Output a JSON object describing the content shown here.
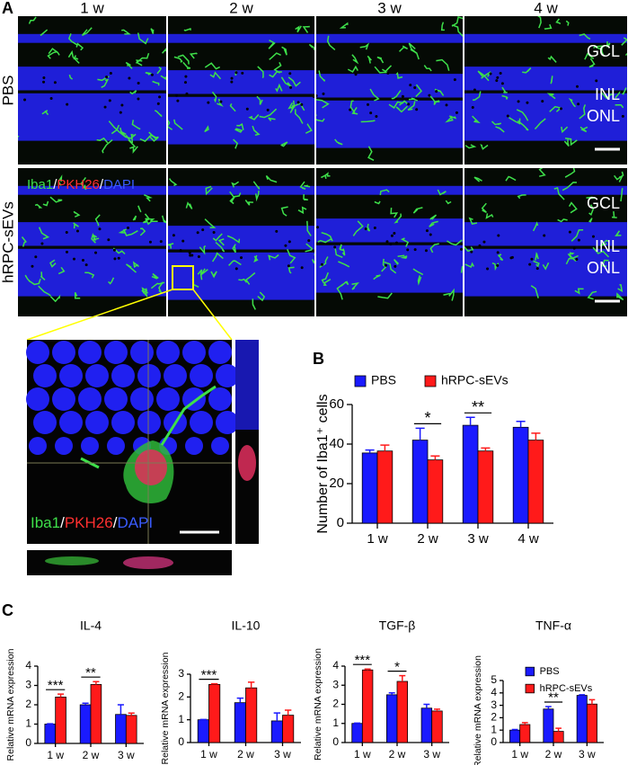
{
  "panel_a": {
    "label": "A",
    "columns": [
      "1 w",
      "2 w",
      "3 w",
      "4 w"
    ],
    "rows": [
      "PBS",
      "hRPC-sEVs"
    ],
    "layers": [
      "GCL",
      "INL",
      "ONL"
    ],
    "stain": [
      "Iba1",
      "/",
      "PKH26",
      "/",
      "DAPI"
    ]
  },
  "chart_data": [
    {
      "type": "bar",
      "panel": "B",
      "ylabel": "Number of Iba1⁺ cells",
      "categories": [
        "1 w",
        "2 w",
        "3 w",
        "4 w"
      ],
      "ylim": [
        0,
        60
      ],
      "yticks": [
        0,
        20,
        40,
        60
      ],
      "legend": "top",
      "series": [
        {
          "name": "PBS",
          "color": "#1a1aff",
          "values": [
            35.5,
            42,
            49.5,
            48.5
          ],
          "errors": [
            1.5,
            6,
            4,
            3
          ]
        },
        {
          "name": "hRPC-sEVs",
          "color": "#ff1a1a",
          "values": [
            36.5,
            32,
            36.5,
            42
          ],
          "errors": [
            3,
            2,
            1.5,
            3.5
          ]
        }
      ],
      "significance": [
        null,
        "*",
        "**",
        null
      ]
    },
    {
      "type": "bar",
      "panel": "C",
      "title": "IL-4",
      "ylabel": "Relative mRNA expression",
      "categories": [
        "1 w",
        "2 w",
        "3 w"
      ],
      "ylim": [
        0,
        4
      ],
      "yticks": [
        0,
        1,
        2,
        3,
        4
      ],
      "series": [
        {
          "color": "#1a1aff",
          "values": [
            1.0,
            2.0,
            1.5
          ],
          "errors": [
            0.02,
            0.08,
            0.5
          ]
        },
        {
          "color": "#ff1a1a",
          "values": [
            2.4,
            3.05,
            1.45
          ],
          "errors": [
            0.15,
            0.15,
            0.12
          ]
        }
      ],
      "significance": [
        "***",
        "**",
        null
      ]
    },
    {
      "type": "bar",
      "title": "IL-10",
      "ylabel": "Relative mRNA expression",
      "categories": [
        "1 w",
        "2 w",
        "3 w"
      ],
      "ylim": [
        0,
        3
      ],
      "yticks": [
        0,
        1,
        2,
        3
      ],
      "series": [
        {
          "color": "#1a1aff",
          "values": [
            1.0,
            1.75,
            0.95
          ],
          "errors": [
            0.01,
            0.2,
            0.35
          ]
        },
        {
          "color": "#ff1a1a",
          "values": [
            2.55,
            2.4,
            1.2
          ],
          "errors": [
            0.03,
            0.25,
            0.22
          ]
        }
      ],
      "significance": [
        "***",
        null,
        null
      ]
    },
    {
      "type": "bar",
      "title": "TGF-β",
      "ylabel": "Relative mRNA expression",
      "categories": [
        "1 w",
        "2 w",
        "3 w"
      ],
      "ylim": [
        0,
        4
      ],
      "yticks": [
        0,
        1,
        2,
        3,
        4
      ],
      "series": [
        {
          "color": "#1a1aff",
          "values": [
            1.0,
            2.5,
            1.8
          ],
          "errors": [
            0.02,
            0.1,
            0.2
          ]
        },
        {
          "color": "#ff1a1a",
          "values": [
            3.8,
            3.2,
            1.65
          ],
          "errors": [
            0.05,
            0.3,
            0.1
          ]
        }
      ],
      "significance": [
        "***",
        "*",
        null
      ]
    },
    {
      "type": "bar",
      "title": "TNF-α",
      "ylabel": "Relative mRNA expression",
      "categories": [
        "1 w",
        "2 w",
        "3 w"
      ],
      "ylim": [
        0,
        5
      ],
      "yticks": [
        0,
        1,
        2,
        3,
        4,
        5
      ],
      "legend": "upper right",
      "series": [
        {
          "name": "PBS",
          "color": "#1a1aff",
          "values": [
            1.0,
            2.7,
            3.8
          ],
          "errors": [
            0.05,
            0.2,
            0.05
          ]
        },
        {
          "name": "hRPC-sEVs",
          "color": "#ff1a1a",
          "values": [
            1.45,
            0.9,
            3.1
          ],
          "errors": [
            0.15,
            0.25,
            0.35
          ]
        }
      ],
      "significance": [
        null,
        "**",
        null
      ]
    }
  ]
}
